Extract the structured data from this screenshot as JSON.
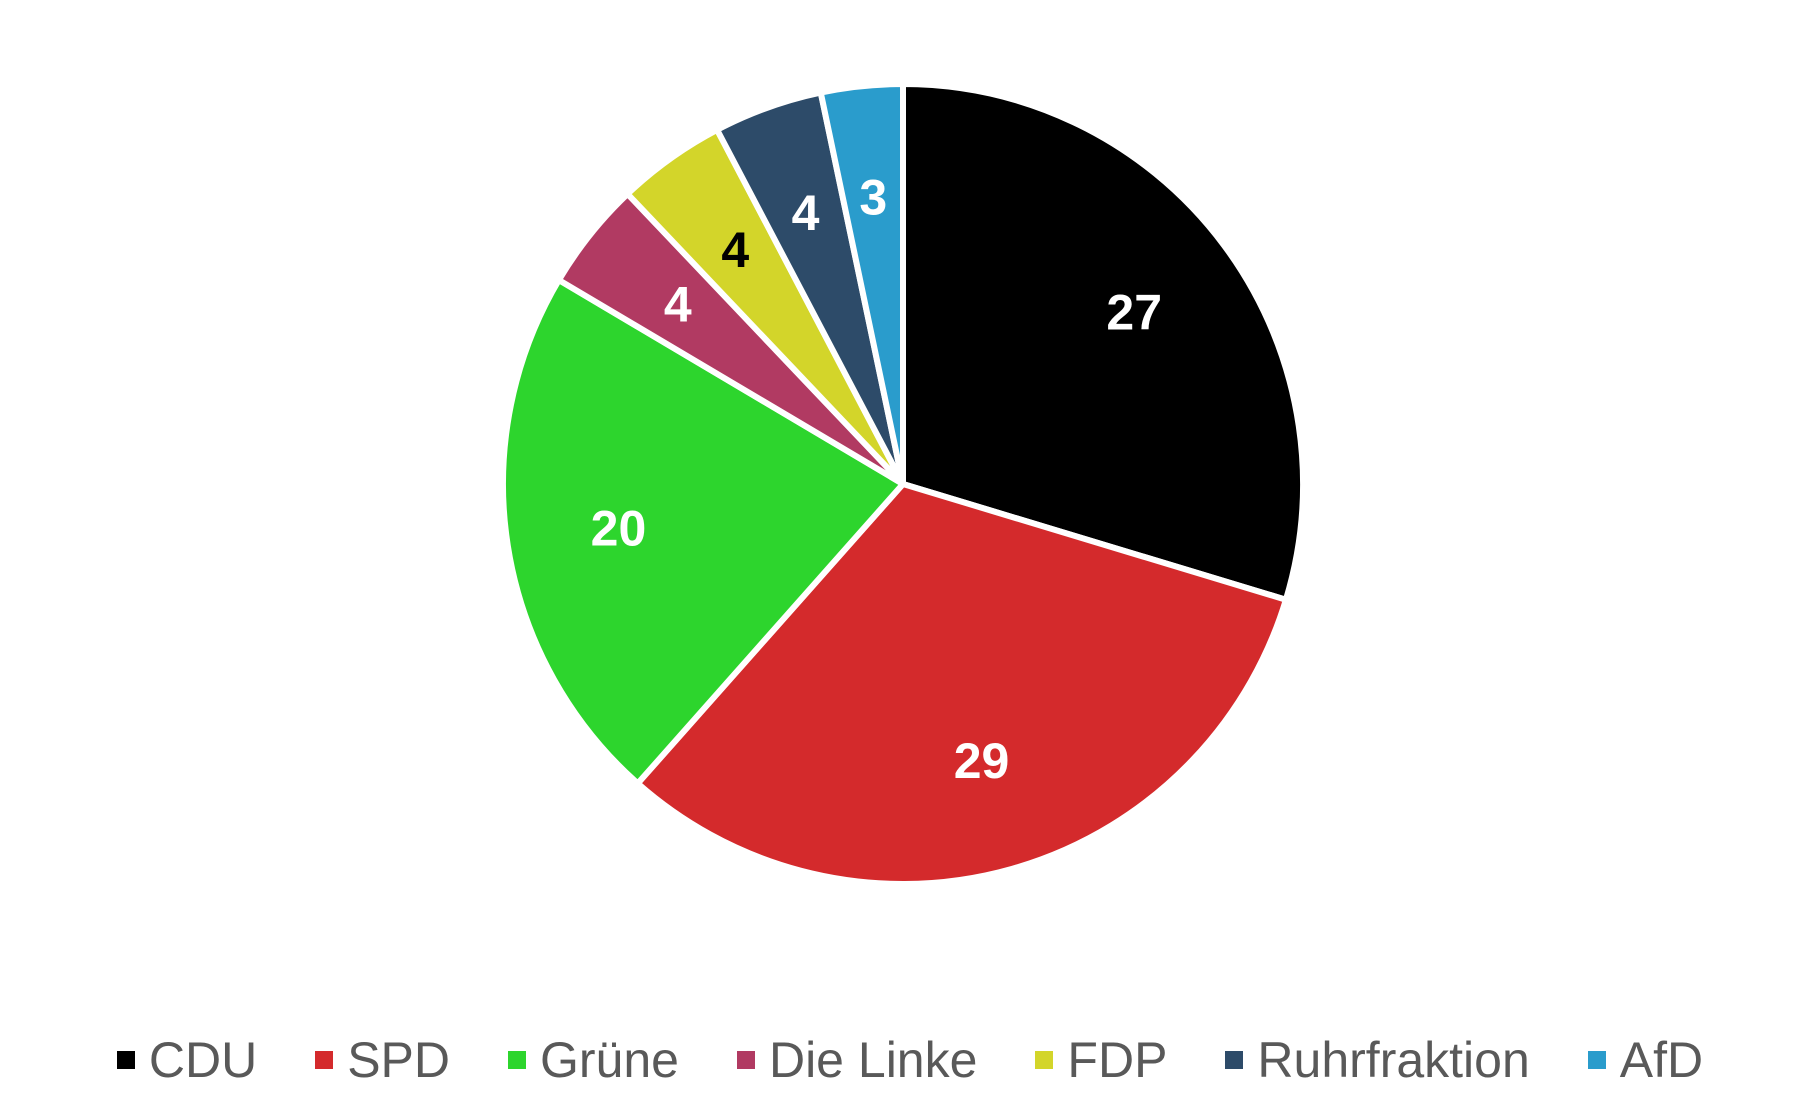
{
  "chart_data": {
    "type": "pie",
    "title": "",
    "legend_position": "bottom",
    "data_labels": true,
    "slices": [
      {
        "label": "CDU",
        "value": 27,
        "color": "#000000",
        "label_color": "#ffffff"
      },
      {
        "label": "SPD",
        "value": 29,
        "color": "#d42a2c",
        "label_color": "#ffffff"
      },
      {
        "label": "Grüne",
        "value": 20,
        "color": "#2dd52d",
        "label_color": "#ffffff"
      },
      {
        "label": "Die Linke",
        "value": 4,
        "color": "#b13a62",
        "label_color": "#ffffff"
      },
      {
        "label": "FDP",
        "value": 4,
        "color": "#d3d52a",
        "label_color": "#000000"
      },
      {
        "label": "Ruhrfraktion",
        "value": 4,
        "color": "#2d4b69",
        "label_color": "#ffffff"
      },
      {
        "label": "AfD",
        "value": 3,
        "color": "#2a9ccc",
        "label_color": "#ffffff"
      }
    ]
  }
}
